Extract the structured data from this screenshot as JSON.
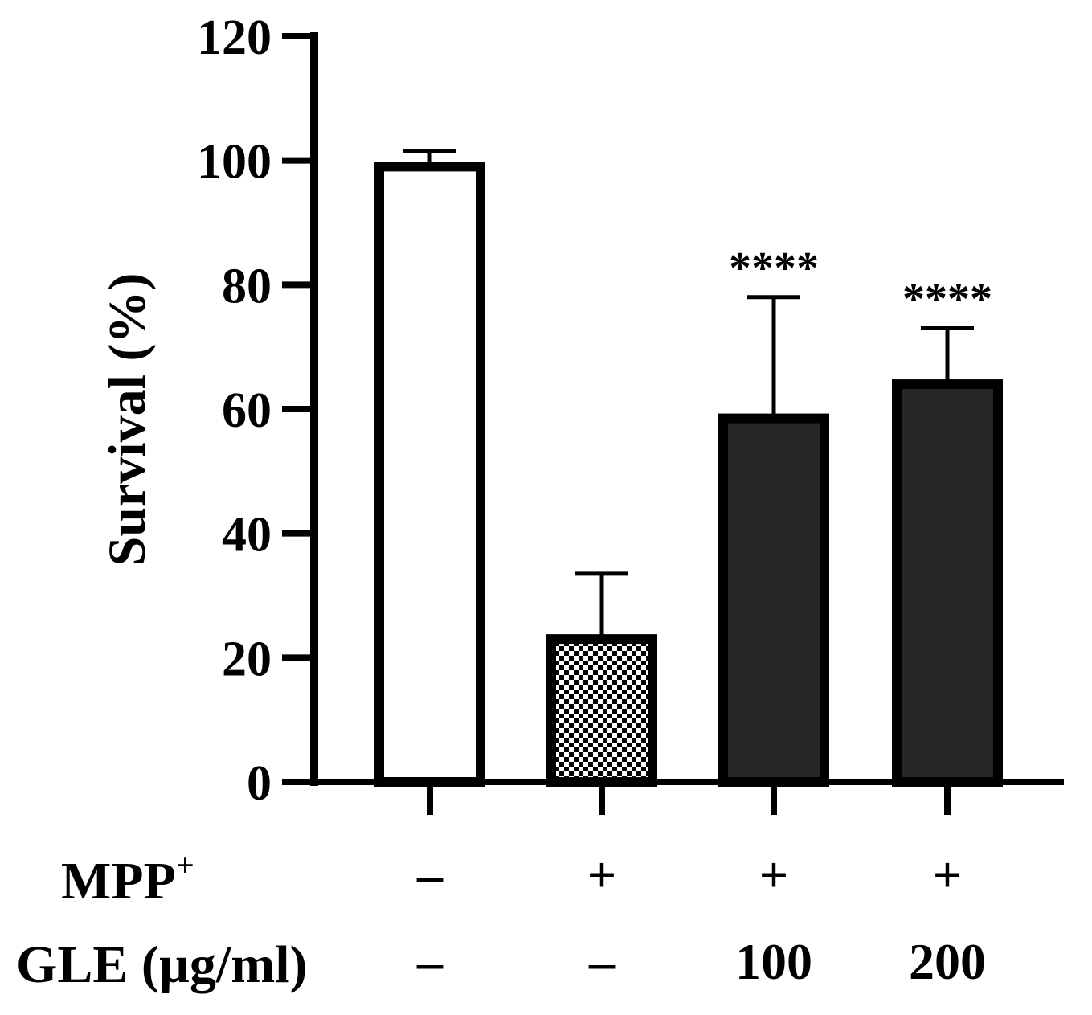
{
  "chart_data": {
    "type": "bar",
    "title": "",
    "xlabel": "",
    "ylabel": "Survival (%)",
    "ylim": [
      0,
      120
    ],
    "yticks": [
      "0",
      "20",
      "40",
      "60",
      "80",
      "100",
      "120"
    ],
    "grid": false,
    "legend": "none",
    "categories": [
      "1",
      "2",
      "3",
      "4"
    ],
    "values": [
      99,
      23,
      58.5,
      64
    ],
    "errors": [
      2.5,
      10.5,
      19.5,
      9
    ],
    "annotations": [
      "",
      "",
      "****",
      "****"
    ],
    "bar_styles": [
      "white",
      "checkered",
      "dark",
      "dark"
    ],
    "colors": {
      "outline": "#000000",
      "dark_fill": "#262626",
      "white_fill": "#ffffff"
    },
    "condition_rows": [
      {
        "label": "MPP",
        "label_sup": "+",
        "values": [
          "–",
          "+",
          "+",
          "+"
        ]
      },
      {
        "label": "GLE (µg/ml)",
        "label_sup": "",
        "values": [
          "–",
          "–",
          "100",
          "200"
        ]
      }
    ]
  }
}
